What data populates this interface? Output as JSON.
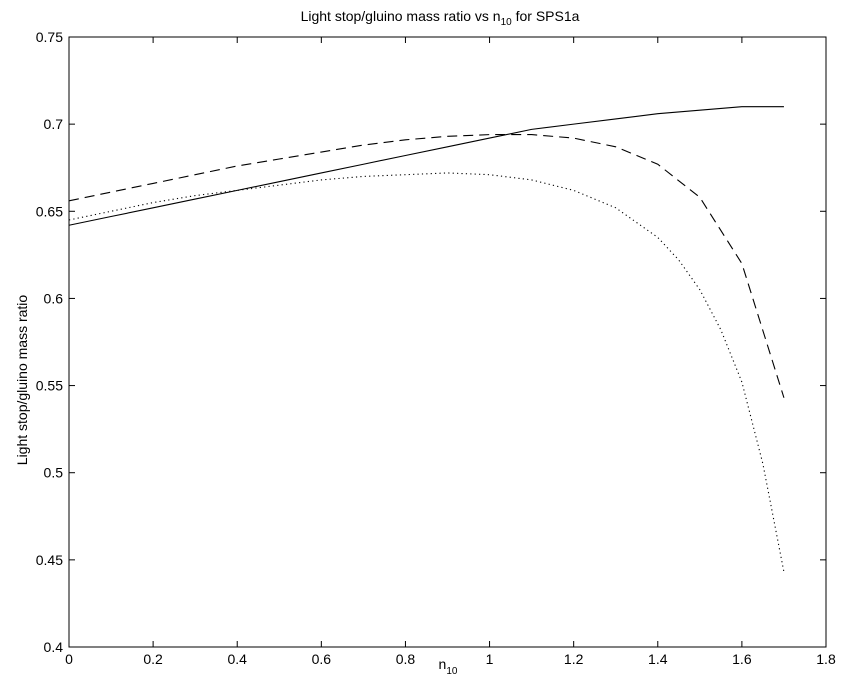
{
  "chart_data": {
    "type": "line",
    "title": {
      "main": "Light stop/gluino mass ratio vs n",
      "sub": "10",
      "rest": " for SPS1a"
    },
    "xlabel": {
      "main": "n",
      "sub": "10"
    },
    "ylabel": "Light stop/gluino mass ratio",
    "xlim": [
      0,
      1.8
    ],
    "ylim": [
      0.4,
      0.75
    ],
    "xticks": [
      0,
      0.2,
      0.4,
      0.6,
      0.8,
      1,
      1.2,
      1.4,
      1.6,
      1.8
    ],
    "xtick_labels": [
      "0",
      "0.2",
      "0.4",
      "0.6",
      "0.8",
      "1",
      "1.2",
      "1.4",
      "1.6",
      "1.8"
    ],
    "yticks": [
      0.4,
      0.45,
      0.5,
      0.55,
      0.6,
      0.65,
      0.7,
      0.75
    ],
    "ytick_labels": [
      "0.4",
      "0.45",
      "0.5",
      "0.55",
      "0.6",
      "0.65",
      "0.7",
      "0.75"
    ],
    "grid": false,
    "legend": false,
    "series": [
      {
        "style": "solid",
        "x": [
          0,
          0.1,
          0.2,
          0.3,
          0.4,
          0.5,
          0.6,
          0.7,
          0.8,
          0.9,
          1.0,
          1.1,
          1.2,
          1.3,
          1.4,
          1.5,
          1.6,
          1.7
        ],
        "y": [
          0.642,
          0.647,
          0.652,
          0.657,
          0.662,
          0.667,
          0.672,
          0.677,
          0.682,
          0.687,
          0.692,
          0.697,
          0.7,
          0.703,
          0.706,
          0.708,
          0.71,
          0.71
        ]
      },
      {
        "style": "dashed",
        "x": [
          0,
          0.1,
          0.2,
          0.3,
          0.4,
          0.5,
          0.6,
          0.7,
          0.8,
          0.9,
          1.0,
          1.1,
          1.2,
          1.3,
          1.4,
          1.5,
          1.6,
          1.7
        ],
        "y": [
          0.656,
          0.661,
          0.666,
          0.671,
          0.676,
          0.68,
          0.684,
          0.688,
          0.691,
          0.693,
          0.694,
          0.694,
          0.692,
          0.687,
          0.677,
          0.658,
          0.62,
          0.543
        ]
      },
      {
        "style": "dotted",
        "x": [
          0,
          0.1,
          0.2,
          0.3,
          0.4,
          0.5,
          0.6,
          0.7,
          0.8,
          0.9,
          1.0,
          1.1,
          1.2,
          1.3,
          1.4,
          1.45,
          1.5,
          1.55,
          1.6,
          1.65,
          1.7
        ],
        "y": [
          0.645,
          0.65,
          0.655,
          0.659,
          0.662,
          0.665,
          0.668,
          0.67,
          0.671,
          0.672,
          0.671,
          0.668,
          0.662,
          0.652,
          0.635,
          0.622,
          0.605,
          0.582,
          0.552,
          0.505,
          0.443
        ]
      }
    ]
  }
}
